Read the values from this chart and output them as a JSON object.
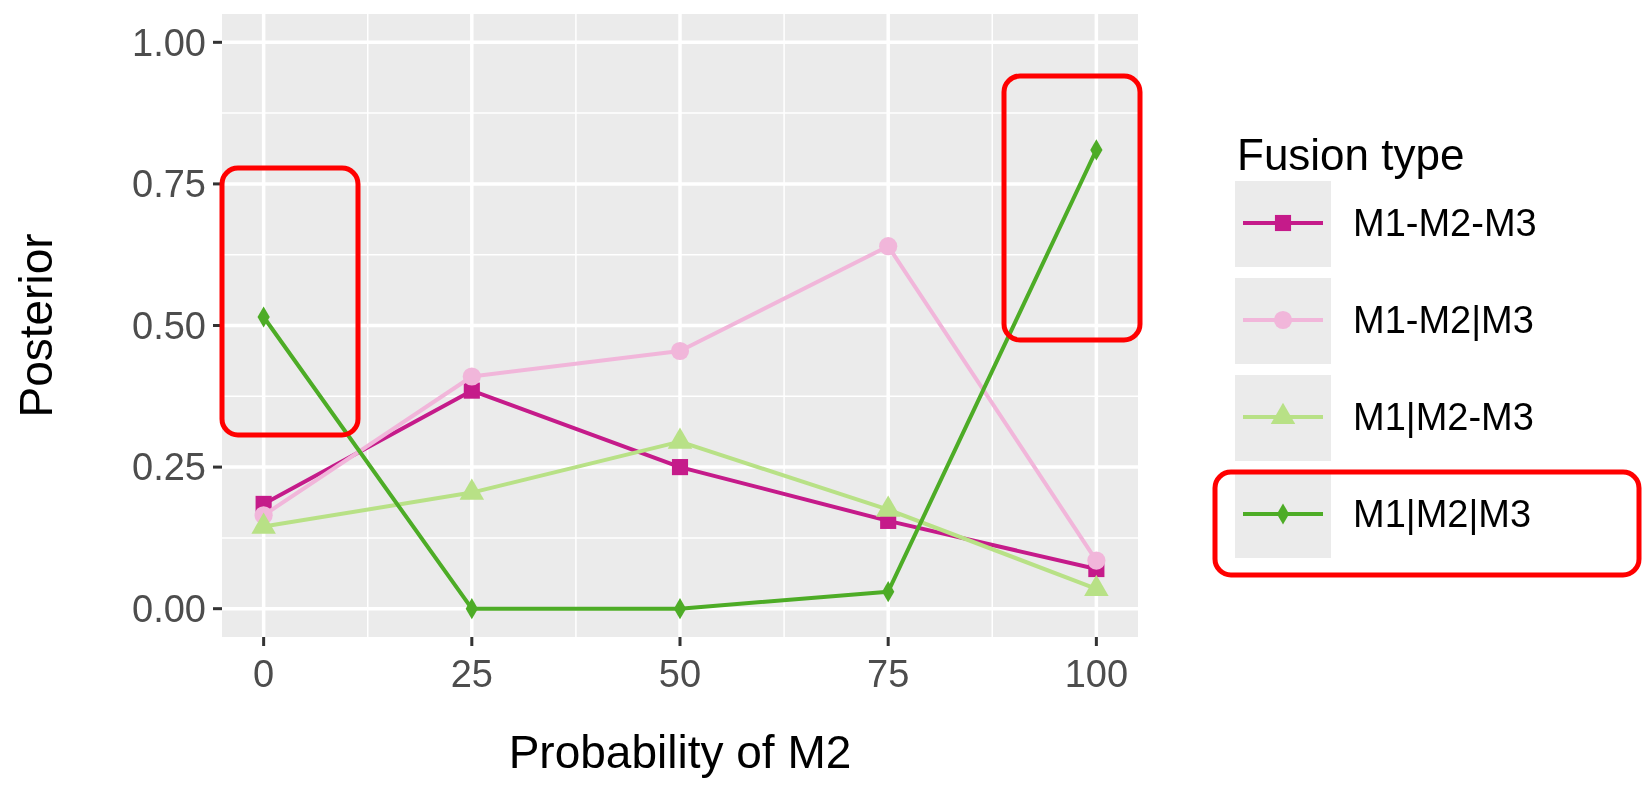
{
  "chart_data": {
    "type": "line",
    "xlabel": "Probability of M2",
    "ylabel": "Posterior",
    "legend_title": "Fusion type",
    "x": [
      0,
      25,
      50,
      75,
      100
    ],
    "xlim": [
      -5,
      105
    ],
    "xticks": [
      0,
      25,
      50,
      75,
      100
    ],
    "ylim": [
      -0.05,
      1.05
    ],
    "yticks": [
      {
        "value": 0,
        "label": "0.00"
      },
      {
        "value": 0.25,
        "label": "0.25"
      },
      {
        "value": 0.5,
        "label": "0.50"
      },
      {
        "value": 0.75,
        "label": "0.75"
      },
      {
        "value": 1,
        "label": "1.00"
      }
    ],
    "grid": true,
    "legend": "right",
    "series": [
      {
        "name": "M1-M2-M3",
        "color": "#c51b8a",
        "marker": "square",
        "values": [
          0.185,
          0.385,
          0.25,
          0.155,
          0.07
        ]
      },
      {
        "name": "M1-M2|M3",
        "color": "#f1b6da",
        "marker": "circle",
        "values": [
          0.165,
          0.41,
          0.455,
          0.64,
          0.085
        ]
      },
      {
        "name": "M1|M2-M3",
        "color": "#b8e186",
        "marker": "triangle",
        "values": [
          0.145,
          0.205,
          0.295,
          0.175,
          0.035
        ]
      },
      {
        "name": "M1|M2|M3",
        "color": "#4dac26",
        "marker": "diamond",
        "values": [
          0.515,
          0,
          0,
          0.03,
          0.81
        ]
      }
    ]
  }
}
